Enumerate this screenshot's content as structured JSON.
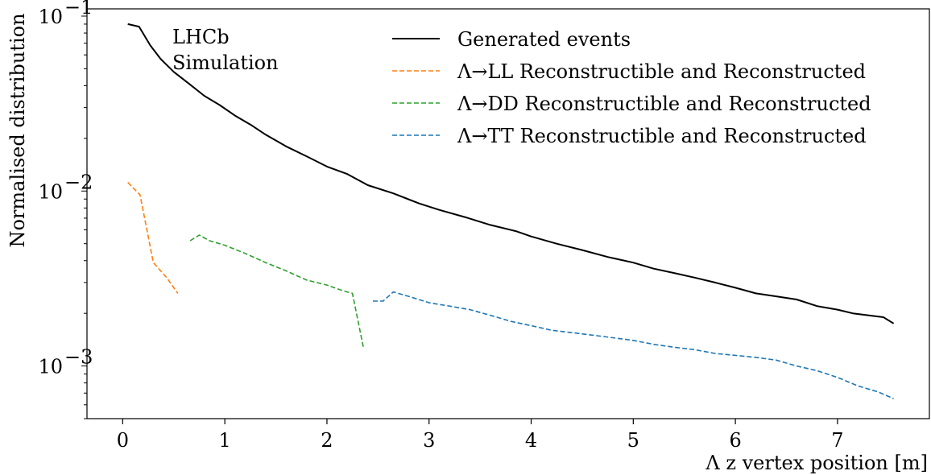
{
  "chart_data": {
    "type": "line",
    "xlabel": "Λ z vertex position [m]",
    "ylabel": "Normalised distribution",
    "xlim": [
      -0.35,
      7.9
    ],
    "ylim": [
      0.0005,
      0.11
    ],
    "yscale": "log",
    "grid": false,
    "legend_position": "top-right",
    "x_ticks": [
      0,
      1,
      2,
      3,
      4,
      5,
      6,
      7
    ],
    "x_tick_labels": [
      "0",
      "1",
      "2",
      "3",
      "4",
      "5",
      "6",
      "7"
    ],
    "y_ticks": [
      0.001,
      0.01,
      0.1
    ],
    "y_tick_labels": [
      "10",
      "10",
      "10"
    ],
    "y_tick_exponents": [
      "−3",
      "−2",
      "−1"
    ],
    "annotation": [
      "LHCb",
      "Simulation"
    ],
    "series": [
      {
        "name": "Generated events",
        "color": "#000000",
        "style": "solid",
        "x": [
          0.05,
          0.16,
          0.27,
          0.37,
          0.5,
          0.65,
          0.8,
          0.95,
          1.1,
          1.25,
          1.4,
          1.6,
          1.8,
          2.0,
          2.2,
          2.4,
          2.65,
          2.9,
          3.1,
          3.35,
          3.6,
          3.85,
          4.0,
          4.25,
          4.5,
          4.75,
          5.0,
          5.2,
          5.4,
          5.6,
          5.8,
          6.0,
          6.2,
          6.4,
          6.6,
          6.8,
          7.0,
          7.15,
          7.3,
          7.45,
          7.55
        ],
        "y": [
          0.09,
          0.087,
          0.068,
          0.057,
          0.048,
          0.041,
          0.035,
          0.031,
          0.027,
          0.024,
          0.021,
          0.018,
          0.0158,
          0.0138,
          0.0125,
          0.0108,
          0.0097,
          0.0085,
          0.0078,
          0.0071,
          0.0064,
          0.0059,
          0.0055,
          0.005,
          0.0046,
          0.0042,
          0.0039,
          0.0036,
          0.0034,
          0.0032,
          0.003,
          0.0028,
          0.0026,
          0.0025,
          0.0024,
          0.0022,
          0.0021,
          0.002,
          0.00195,
          0.0019,
          0.00175
        ]
      },
      {
        "name": "Λ→LL Reconstructible and Reconstructed",
        "color": "#ff7f0e",
        "style": "dashed",
        "x": [
          0.05,
          0.17,
          0.3,
          0.43,
          0.54
        ],
        "y": [
          0.0112,
          0.0095,
          0.0039,
          0.0032,
          0.0026
        ]
      },
      {
        "name": "Λ→DD Reconstructible and Reconstructed",
        "color": "#2ca02c",
        "style": "dashed",
        "x": [
          0.66,
          0.75,
          0.85,
          1.0,
          1.2,
          1.4,
          1.6,
          1.8,
          2.0,
          2.15,
          2.25,
          2.36
        ],
        "y": [
          0.0052,
          0.0056,
          0.0052,
          0.0049,
          0.0044,
          0.0039,
          0.0035,
          0.0031,
          0.0029,
          0.0027,
          0.0026,
          0.00125
        ]
      },
      {
        "name": "Λ→TT Reconstructible and Reconstructed",
        "color": "#1f77b4",
        "style": "dashed",
        "x": [
          2.45,
          2.55,
          2.65,
          2.8,
          3.0,
          3.2,
          3.4,
          3.6,
          3.8,
          4.0,
          4.2,
          4.4,
          4.6,
          4.8,
          5.0,
          5.2,
          5.4,
          5.6,
          5.8,
          6.0,
          6.2,
          6.4,
          6.6,
          6.8,
          7.0,
          7.2,
          7.4,
          7.55
        ],
        "y": [
          0.00235,
          0.00235,
          0.00265,
          0.0025,
          0.0023,
          0.0022,
          0.0021,
          0.00195,
          0.0018,
          0.0017,
          0.0016,
          0.00155,
          0.0015,
          0.00145,
          0.0014,
          0.00133,
          0.00128,
          0.00124,
          0.00118,
          0.00115,
          0.00112,
          0.00108,
          0.001,
          0.00094,
          0.00086,
          0.00077,
          0.00071,
          0.00065
        ]
      }
    ]
  }
}
